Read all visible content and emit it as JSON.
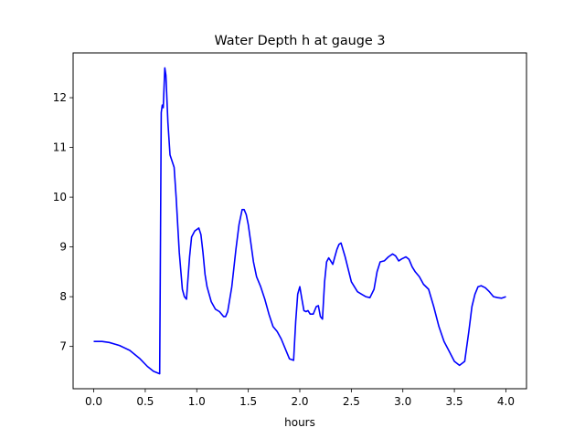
{
  "chart_data": {
    "type": "line",
    "title": "Water Depth h at gauge 3",
    "xlabel": "hours",
    "ylabel": "",
    "xlim": [
      -0.2,
      4.2
    ],
    "ylim": [
      6.15,
      12.9
    ],
    "xticks": [
      0.0,
      0.5,
      1.0,
      1.5,
      2.0,
      2.5,
      3.0,
      3.5,
      4.0
    ],
    "xtick_labels": [
      "0.0",
      "0.5",
      "1.0",
      "1.5",
      "2.0",
      "2.5",
      "3.0",
      "3.5",
      "4.0"
    ],
    "yticks": [
      7,
      8,
      9,
      10,
      11,
      12
    ],
    "ytick_labels": [
      "7",
      "8",
      "9",
      "10",
      "11",
      "12"
    ],
    "grid": false,
    "colors": {
      "line": "#0000ff",
      "axes": "#000000",
      "background": "#ffffff"
    },
    "series": [
      {
        "name": "",
        "x": [
          0.0,
          0.08,
          0.15,
          0.25,
          0.35,
          0.45,
          0.52,
          0.58,
          0.64,
          0.655,
          0.665,
          0.675,
          0.69,
          0.7,
          0.72,
          0.74,
          0.78,
          0.8,
          0.83,
          0.86,
          0.88,
          0.9,
          0.93,
          0.95,
          0.98,
          1.0,
          1.02,
          1.04,
          1.06,
          1.08,
          1.1,
          1.14,
          1.18,
          1.22,
          1.26,
          1.28,
          1.3,
          1.34,
          1.38,
          1.41,
          1.44,
          1.46,
          1.48,
          1.5,
          1.52,
          1.55,
          1.58,
          1.62,
          1.66,
          1.7,
          1.74,
          1.78,
          1.82,
          1.86,
          1.9,
          1.94,
          1.96,
          1.98,
          2.0,
          2.02,
          2.04,
          2.06,
          2.08,
          2.1,
          2.13,
          2.16,
          2.18,
          2.2,
          2.22,
          2.24,
          2.26,
          2.28,
          2.3,
          2.32,
          2.34,
          2.36,
          2.38,
          2.4,
          2.44,
          2.47,
          2.5,
          2.53,
          2.56,
          2.6,
          2.64,
          2.68,
          2.72,
          2.75,
          2.78,
          2.82,
          2.86,
          2.9,
          2.93,
          2.96,
          2.99,
          3.03,
          3.06,
          3.09,
          3.12,
          3.16,
          3.2,
          3.25,
          3.3,
          3.35,
          3.4,
          3.45,
          3.5,
          3.55,
          3.6,
          3.64,
          3.67,
          3.7,
          3.73,
          3.76,
          3.8,
          3.84,
          3.88,
          3.92,
          3.96,
          4.0
        ],
        "y": [
          7.1,
          7.1,
          7.08,
          7.02,
          6.92,
          6.75,
          6.6,
          6.5,
          6.45,
          11.7,
          11.85,
          11.8,
          12.6,
          12.45,
          11.5,
          10.85,
          10.6,
          10.0,
          8.9,
          8.15,
          8.0,
          7.95,
          8.8,
          9.2,
          9.32,
          9.35,
          9.38,
          9.25,
          8.9,
          8.45,
          8.2,
          7.9,
          7.75,
          7.7,
          7.6,
          7.6,
          7.7,
          8.2,
          8.95,
          9.45,
          9.75,
          9.75,
          9.65,
          9.45,
          9.15,
          8.7,
          8.4,
          8.2,
          7.95,
          7.65,
          7.4,
          7.3,
          7.15,
          6.95,
          6.75,
          6.72,
          7.5,
          8.05,
          8.2,
          7.95,
          7.72,
          7.7,
          7.72,
          7.65,
          7.65,
          7.8,
          7.82,
          7.6,
          7.55,
          8.3,
          8.7,
          8.78,
          8.72,
          8.65,
          8.8,
          8.95,
          9.05,
          9.08,
          8.8,
          8.55,
          8.3,
          8.2,
          8.1,
          8.05,
          8.0,
          7.98,
          8.15,
          8.5,
          8.7,
          8.72,
          8.8,
          8.86,
          8.82,
          8.72,
          8.76,
          8.8,
          8.75,
          8.6,
          8.5,
          8.4,
          8.25,
          8.15,
          7.8,
          7.4,
          7.1,
          6.9,
          6.7,
          6.62,
          6.7,
          7.3,
          7.8,
          8.05,
          8.2,
          8.22,
          8.18,
          8.1,
          8.0,
          7.98,
          7.97,
          8.0
        ]
      }
    ]
  }
}
